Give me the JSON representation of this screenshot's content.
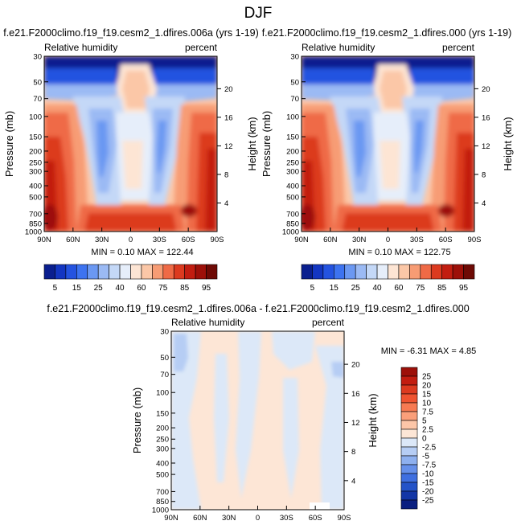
{
  "title": "DJF",
  "chart_data": [
    {
      "type": "heatmap",
      "title": "f.e21.F2000climo.f19_f19.cesm2_1.dfires.006a (yrs 1-19)",
      "left_label": "Relative humidity",
      "right_label": "percent",
      "ylabel": "Pressure (mb)",
      "ylabel_right": "Height (km)",
      "x_ticks": [
        "90N",
        "60N",
        "30N",
        "0",
        "30S",
        "60S",
        "90S"
      ],
      "y_ticks": [
        "30",
        "50",
        "70",
        "100",
        "150",
        "200",
        "250",
        "300",
        "400",
        "500",
        "700",
        "850",
        "1000"
      ],
      "height_ticks": [
        "20",
        "16",
        "12",
        "8",
        "4"
      ],
      "ylim": [
        1000,
        30
      ],
      "stats": "MIN =  0.10   MAX = 122.44",
      "colorbar_labels": [
        "5",
        "15",
        "25",
        "40",
        "60",
        "75",
        "85",
        "95"
      ],
      "colors": [
        "#0a1f8f",
        "#1336c2",
        "#2453e0",
        "#3d73f0",
        "#6b98f2",
        "#9bbaf4",
        "#c4d8f7",
        "#e6eefa",
        "#fde5d4",
        "#fbc7a7",
        "#f79c74",
        "#ef6a46",
        "#dc3a1f",
        "#c21d10",
        "#9d1009",
        "#6e0a05"
      ]
    },
    {
      "type": "heatmap",
      "title": "f.e21.F2000climo.f19_f19.cesm2_1.dfires.000 (yrs 1-19)",
      "left_label": "Relative humidity",
      "right_label": "percent",
      "ylabel": "Pressure (mb)",
      "ylabel_right": "Height (km)",
      "x_ticks": [
        "90N",
        "60N",
        "30N",
        "0",
        "30S",
        "60S",
        "90S"
      ],
      "y_ticks": [
        "30",
        "50",
        "70",
        "100",
        "150",
        "200",
        "250",
        "300",
        "400",
        "500",
        "700",
        "850",
        "1000"
      ],
      "height_ticks": [
        "20",
        "16",
        "12",
        "8",
        "4"
      ],
      "ylim": [
        1000,
        30
      ],
      "stats": "MIN =  0.10   MAX = 122.75",
      "colorbar_labels": [
        "5",
        "15",
        "25",
        "40",
        "60",
        "75",
        "85",
        "95"
      ],
      "colors": [
        "#0a1f8f",
        "#1336c2",
        "#2453e0",
        "#3d73f0",
        "#6b98f2",
        "#9bbaf4",
        "#c4d8f7",
        "#e6eefa",
        "#fde5d4",
        "#fbc7a7",
        "#f79c74",
        "#ef6a46",
        "#dc3a1f",
        "#c21d10",
        "#9d1009",
        "#6e0a05"
      ]
    },
    {
      "type": "heatmap",
      "title": "f.e21.F2000climo.f19_f19.cesm2_1.dfires.006a - f.e21.F2000climo.f19_f19.cesm2_1.dfires.000",
      "left_label": "Relative humidity",
      "right_label": "percent",
      "ylabel": "Pressure (mb)",
      "ylabel_right": "Height (km)",
      "x_ticks": [
        "90N",
        "60N",
        "30N",
        "0",
        "30S",
        "60S",
        "90S"
      ],
      "y_ticks": [
        "30",
        "50",
        "70",
        "100",
        "150",
        "200",
        "250",
        "300",
        "400",
        "500",
        "700",
        "850",
        "1000"
      ],
      "height_ticks": [
        "20",
        "16",
        "12",
        "8",
        "4"
      ],
      "ylim": [
        1000,
        30
      ],
      "stats": "MIN =  -6.31   MAX =  4.85",
      "colorbar_labels": [
        "25",
        "20",
        "15",
        "10",
        "7.5",
        "5",
        "2.5",
        "0",
        "-2.5",
        "-5",
        "-7.5",
        "-10",
        "-15",
        "-20",
        "-25"
      ],
      "colors": [
        "#9d1009",
        "#c21d10",
        "#dc3a1f",
        "#ef5330",
        "#f77a52",
        "#fa9f7a",
        "#fcc6a8",
        "#fde6d6",
        "#dce8f8",
        "#b6cdf4",
        "#8eb0ef",
        "#6690ea",
        "#3f6fe0",
        "#2453c8",
        "#1336a6",
        "#0a1f80"
      ]
    }
  ]
}
